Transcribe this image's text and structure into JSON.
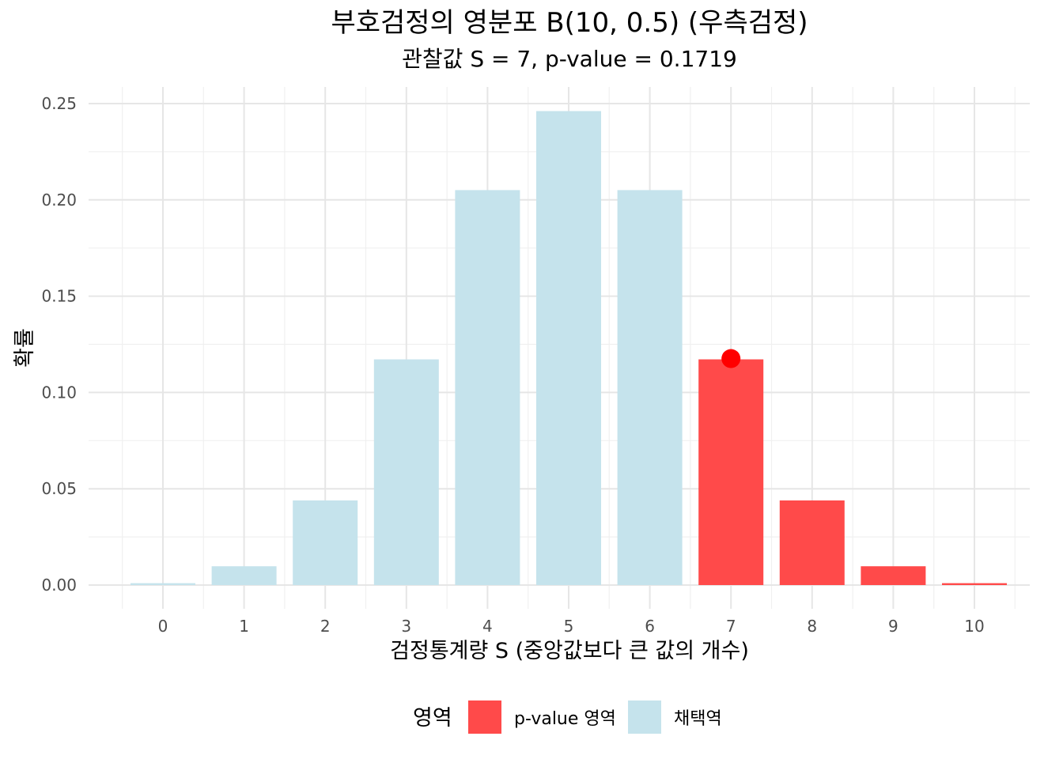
{
  "chart_data": {
    "type": "bar",
    "title": "부호검정의 영분포 B(10, 0.5) (우측검정)",
    "subtitle": "관찰값 S = 7, p-value = 0.1719",
    "xlabel": "검정통계량 S (중앙값보다 큰 값의 개수)",
    "ylabel": "확률",
    "categories": [
      "0",
      "1",
      "2",
      "3",
      "4",
      "5",
      "6",
      "7",
      "8",
      "9",
      "10"
    ],
    "values": [
      0.000977,
      0.009766,
      0.043945,
      0.117188,
      0.205078,
      0.246094,
      0.205078,
      0.117188,
      0.043945,
      0.009766,
      0.000977
    ],
    "region": [
      "채택역",
      "채택역",
      "채택역",
      "채택역",
      "채택역",
      "채택역",
      "채택역",
      "p-value 영역",
      "p-value 영역",
      "p-value 영역",
      "p-value 영역"
    ],
    "ylim": [
      0,
      0.25
    ],
    "yticks": [
      "0.00",
      "0.05",
      "0.10",
      "0.15",
      "0.20",
      "0.25"
    ],
    "ytick_values": [
      0,
      0.05,
      0.1,
      0.15,
      0.2,
      0.25
    ],
    "observed": {
      "x": 7,
      "y": 0.117188
    },
    "legend": {
      "title": "영역",
      "position": "bottom",
      "items": [
        {
          "label": "p-value 영역",
          "color": "#ff4a4a"
        },
        {
          "label": "채택역",
          "color": "#c5e3ec"
        }
      ]
    },
    "colors": {
      "p-value 영역": "#ff4a4a",
      "채택역": "#c5e3ec",
      "observed_point": "#ff0000"
    },
    "grid": true
  }
}
